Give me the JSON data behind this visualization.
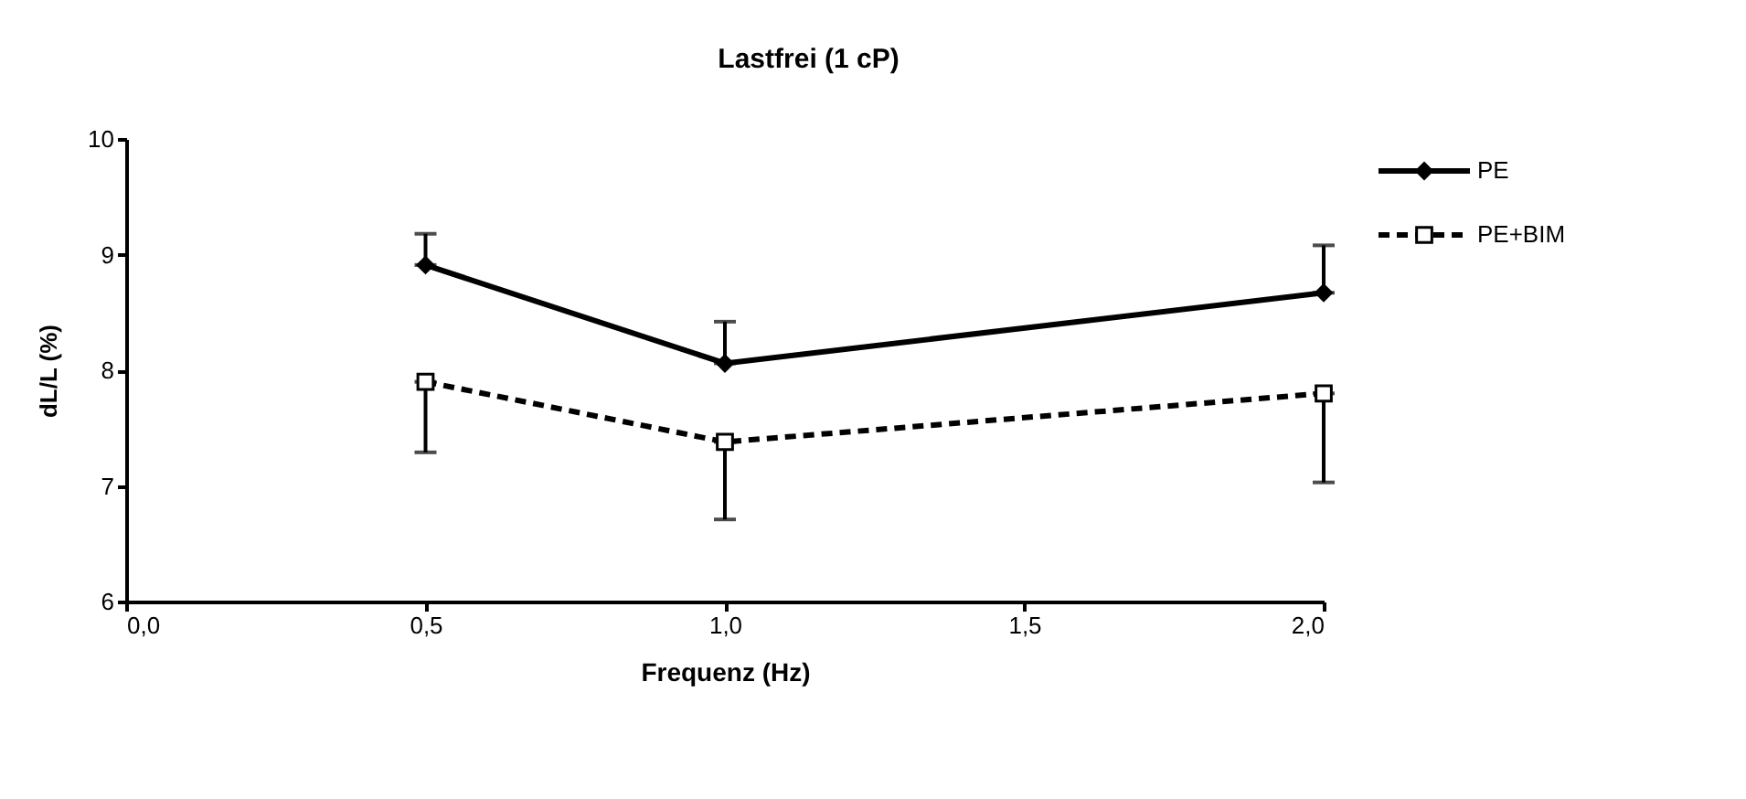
{
  "chart_data": {
    "type": "line",
    "title": "Lastfrei (1 cP)",
    "xlabel": "Frequenz (Hz)",
    "ylabel": "dL/L (%)",
    "x": [
      0.5,
      1.0,
      2.0
    ],
    "xlim": [
      0,
      2
    ],
    "xticks": [
      {
        "value": 0,
        "label": "0,0"
      },
      {
        "value": 0.5,
        "label": "0,5"
      },
      {
        "value": 1,
        "label": "1,0"
      },
      {
        "value": 1.5,
        "label": "1,5"
      },
      {
        "value": 2,
        "label": "2,0"
      }
    ],
    "ylim": [
      6,
      10
    ],
    "yticks": [
      {
        "value": 6,
        "label": "6"
      },
      {
        "value": 7,
        "label": "7"
      },
      {
        "value": 8,
        "label": "8"
      },
      {
        "value": 9,
        "label": "9"
      },
      {
        "value": 10,
        "label": "10"
      }
    ],
    "grid": false,
    "legend": "right",
    "series": [
      {
        "name": "PE",
        "color": "#000000",
        "values": [
          8.91,
          8.06,
          8.67
        ],
        "errors": [
          [
            8.91,
            9.18
          ],
          [
            8.06,
            8.42
          ],
          [
            8.67,
            9.08
          ]
        ],
        "marker": "diamond",
        "line_style": "solid"
      },
      {
        "name": "PE+BIM",
        "color": "#000000",
        "values": [
          7.9,
          7.38,
          7.8
        ],
        "errors": [
          [
            7.29,
            7.9
          ],
          [
            6.71,
            7.38
          ],
          [
            7.03,
            7.8
          ]
        ],
        "marker": "square",
        "line_style": "dashed"
      }
    ]
  }
}
